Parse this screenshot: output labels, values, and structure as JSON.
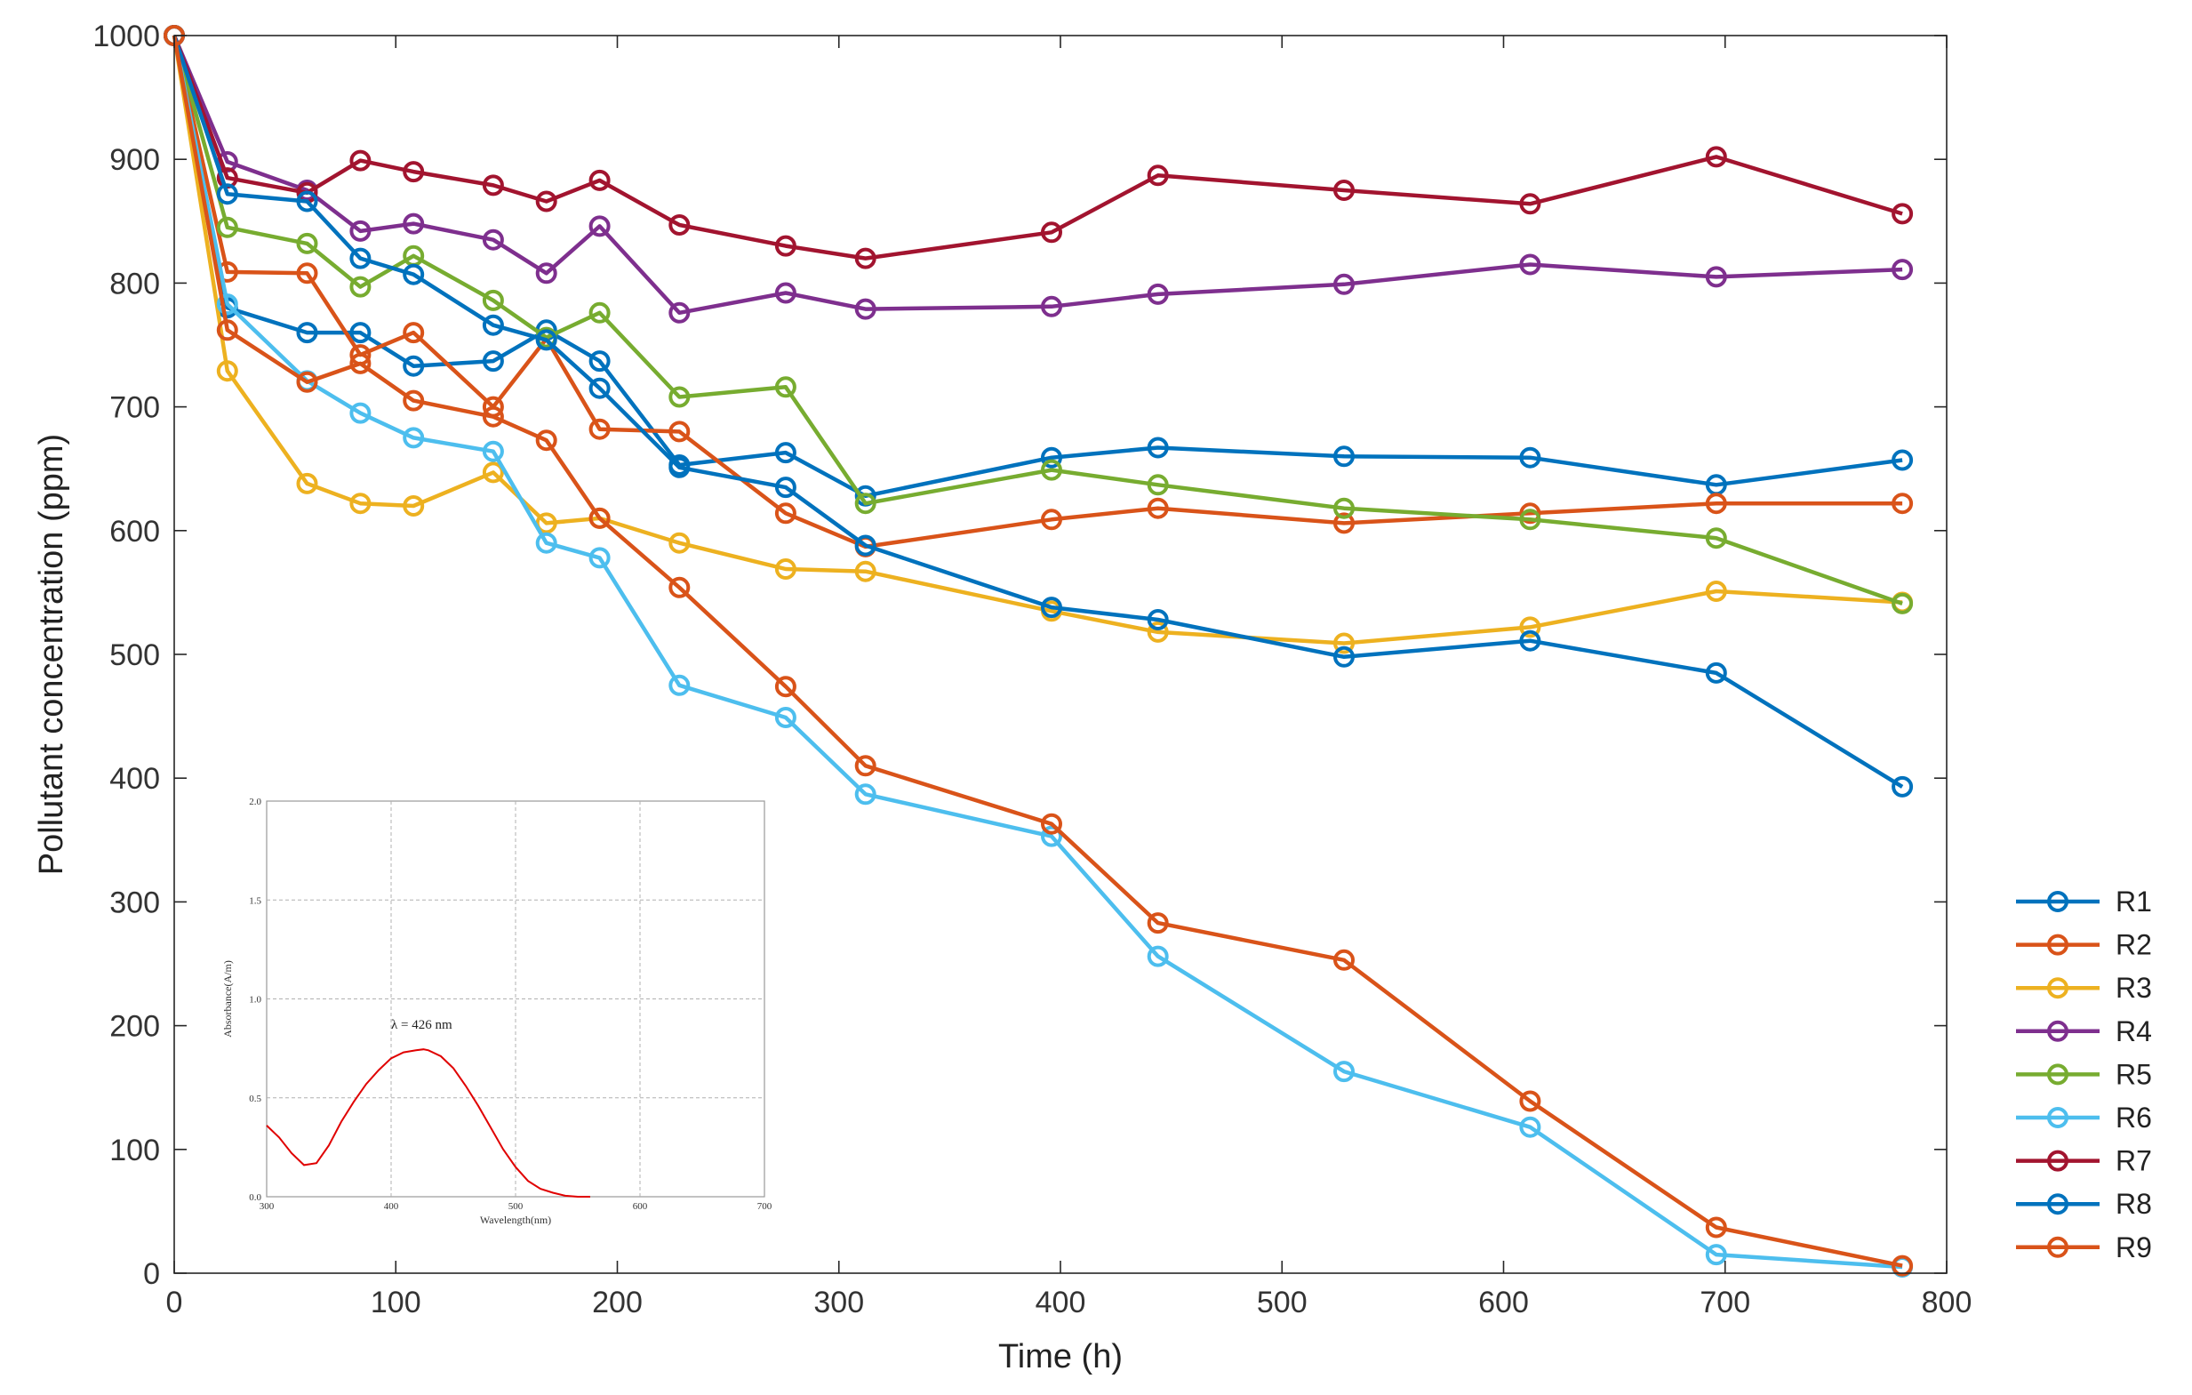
{
  "chart_data": [
    {
      "type": "line",
      "xlabel": "Time (h)",
      "ylabel": "Pollutant concentration (ppm)",
      "xlim": [
        0,
        800
      ],
      "ylim": [
        0,
        1000
      ],
      "xticks": [
        "0",
        "100",
        "200",
        "300",
        "400",
        "500",
        "600",
        "700",
        "800"
      ],
      "yticks": [
        "0",
        "100",
        "200",
        "300",
        "400",
        "500",
        "600",
        "700",
        "800",
        "900",
        "1000"
      ],
      "legend_position": "right",
      "marker": "open-circle",
      "series": [
        {
          "name": "R1",
          "color": "#0072BD",
          "x": [
            0,
            24,
            60,
            84,
            108,
            144,
            168,
            192,
            228,
            276,
            312,
            396,
            444,
            528,
            612,
            696,
            780
          ],
          "y": [
            1000,
            780,
            760,
            760,
            733,
            737,
            762,
            737,
            653,
            663,
            628,
            659,
            667,
            660,
            659,
            637,
            657
          ]
        },
        {
          "name": "R2",
          "color": "#D95319",
          "x": [
            0,
            24,
            60,
            84,
            108,
            144,
            168,
            192,
            228,
            276,
            312,
            396,
            444,
            528,
            612,
            696,
            780
          ],
          "y": [
            1000,
            809,
            808,
            742,
            760,
            700,
            755,
            682,
            680,
            614,
            587,
            609,
            618,
            606,
            614,
            622,
            622
          ]
        },
        {
          "name": "R3",
          "color": "#EDB120",
          "x": [
            0,
            24,
            60,
            84,
            108,
            144,
            168,
            192,
            228,
            276,
            312,
            396,
            444,
            528,
            612,
            696,
            780
          ],
          "y": [
            1000,
            729,
            638,
            622,
            620,
            647,
            606,
            610,
            590,
            569,
            567,
            535,
            518,
            509,
            522,
            551,
            542
          ]
        },
        {
          "name": "R4",
          "color": "#7E2F8E",
          "x": [
            0,
            24,
            60,
            84,
            108,
            144,
            168,
            192,
            228,
            276,
            312,
            396,
            444,
            528,
            612,
            696,
            780
          ],
          "y": [
            1000,
            898,
            875,
            842,
            848,
            835,
            808,
            846,
            776,
            792,
            779,
            781,
            791,
            799,
            815,
            805,
            811
          ]
        },
        {
          "name": "R5",
          "color": "#77AC30",
          "x": [
            0,
            24,
            60,
            84,
            108,
            144,
            168,
            192,
            228,
            276,
            312,
            396,
            444,
            528,
            612,
            696,
            780
          ],
          "y": [
            1000,
            845,
            832,
            797,
            822,
            786,
            756,
            776,
            708,
            716,
            622,
            649,
            637,
            618,
            609,
            594,
            541
          ]
        },
        {
          "name": "R6",
          "color": "#4DBEEE",
          "x": [
            0,
            24,
            60,
            84,
            108,
            144,
            168,
            192,
            228,
            276,
            312,
            396,
            444,
            528,
            612,
            696,
            780
          ],
          "y": [
            1000,
            783,
            721,
            695,
            675,
            664,
            590,
            578,
            475,
            449,
            387,
            353,
            256,
            163,
            118,
            15,
            5
          ]
        },
        {
          "name": "R7",
          "color": "#A2142F",
          "x": [
            0,
            24,
            60,
            84,
            108,
            144,
            168,
            192,
            228,
            276,
            312,
            396,
            444,
            528,
            612,
            696,
            780
          ],
          "y": [
            1000,
            885,
            873,
            899,
            890,
            879,
            866,
            883,
            847,
            830,
            820,
            841,
            887,
            875,
            864,
            902,
            856
          ]
        },
        {
          "name": "R8",
          "color": "#0072BD",
          "x": [
            0,
            24,
            60,
            84,
            108,
            144,
            168,
            192,
            228,
            276,
            312,
            396,
            444,
            528,
            612,
            696,
            780
          ],
          "y": [
            1000,
            872,
            866,
            820,
            807,
            766,
            754,
            715,
            651,
            635,
            588,
            538,
            528,
            498,
            511,
            485,
            393
          ]
        },
        {
          "name": "R9",
          "color": "#D95319",
          "x": [
            0,
            24,
            60,
            84,
            108,
            144,
            168,
            192,
            228,
            276,
            312,
            396,
            444,
            528,
            612,
            696,
            780
          ],
          "y": [
            1000,
            762,
            720,
            735,
            705,
            692,
            673,
            610,
            554,
            474,
            410,
            363,
            283,
            253,
            139,
            37,
            6
          ]
        }
      ]
    },
    {
      "type": "line",
      "role": "inset",
      "xlabel": "Wavelength(nm)",
      "ylabel": "Absorbance(A/m)",
      "xlim": [
        300,
        700
      ],
      "ylim": [
        0,
        2
      ],
      "xticks": [
        "300",
        "400",
        "500",
        "600",
        "700"
      ],
      "yticks": [
        "0.0",
        "0.5",
        "1.0",
        "1.5",
        "2.0"
      ],
      "annotation": "λ = 426 nm",
      "series": [
        {
          "name": "spectrum",
          "color": "#E00000",
          "x": [
            300,
            310,
            320,
            330,
            340,
            350,
            360,
            370,
            380,
            390,
            400,
            410,
            420,
            426,
            430,
            440,
            450,
            460,
            470,
            480,
            490,
            500,
            510,
            520,
            530,
            540,
            550,
            560
          ],
          "y": [
            0.36,
            0.3,
            0.22,
            0.16,
            0.17,
            0.26,
            0.38,
            0.48,
            0.57,
            0.64,
            0.7,
            0.73,
            0.74,
            0.745,
            0.74,
            0.71,
            0.65,
            0.56,
            0.46,
            0.35,
            0.24,
            0.15,
            0.08,
            0.04,
            0.02,
            0.005,
            0.0,
            0.0
          ]
        }
      ]
    }
  ]
}
